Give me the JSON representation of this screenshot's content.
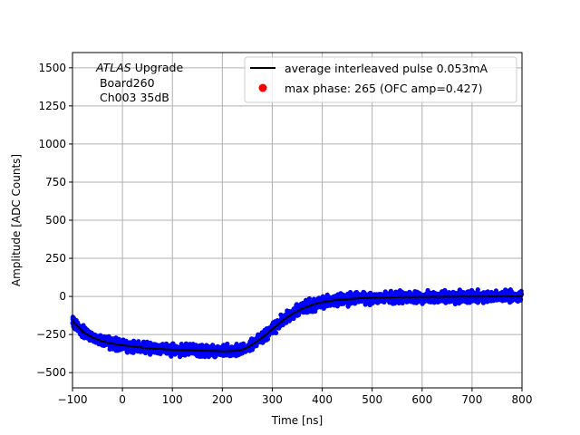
{
  "chart_data": {
    "type": "scatter",
    "title": "",
    "xlabel": "Time [ns]",
    "ylabel": "Amplitude [ADC Counts]",
    "xlim": [
      -100,
      800
    ],
    "ylim": [
      -600,
      1600
    ],
    "x_ticks": [
      -100,
      0,
      100,
      200,
      300,
      400,
      500,
      600,
      700,
      800
    ],
    "y_ticks": [
      -500,
      -250,
      0,
      250,
      500,
      750,
      1000,
      1250,
      1500
    ],
    "grid": true,
    "annotation": {
      "line1_italic": "ATLAS",
      "line1_rest": " Upgrade",
      "line2": " Board260",
      "line3": " Ch003 35dB"
    },
    "legend": {
      "placement": "top-right",
      "entries": [
        {
          "label": "average interleaved pulse 0.053mA",
          "marker": "line",
          "color": "#000000"
        },
        {
          "label": "max phase: 265 (OFC amp=0.427)",
          "marker": "dot",
          "color": "#ff0000"
        }
      ]
    },
    "series": [
      {
        "kind": "line",
        "color": "#000000",
        "x": [
          -100,
          -80,
          -60,
          -40,
          -20,
          0,
          25,
          50,
          75,
          100,
          125,
          150,
          175,
          200,
          220,
          235,
          250,
          265,
          280,
          300,
          320,
          340,
          360,
          380,
          400,
          425,
          450,
          475,
          500,
          550,
          600,
          650,
          700,
          750,
          800
        ],
        "y": [
          -160,
          -230,
          -270,
          -295,
          -310,
          -320,
          -330,
          -340,
          -345,
          -350,
          -352,
          -355,
          -357,
          -360,
          -358,
          -355,
          -335,
          -305,
          -270,
          -215,
          -160,
          -115,
          -80,
          -55,
          -38,
          -25,
          -18,
          -12,
          -8,
          -5,
          -3,
          -2,
          -1,
          0,
          0
        ]
      },
      {
        "kind": "scatter",
        "color": "#0000ff",
        "description_points": "dense scatter around the average pulse, spread about ±50 ADC counts",
        "spread": 50
      }
    ]
  }
}
